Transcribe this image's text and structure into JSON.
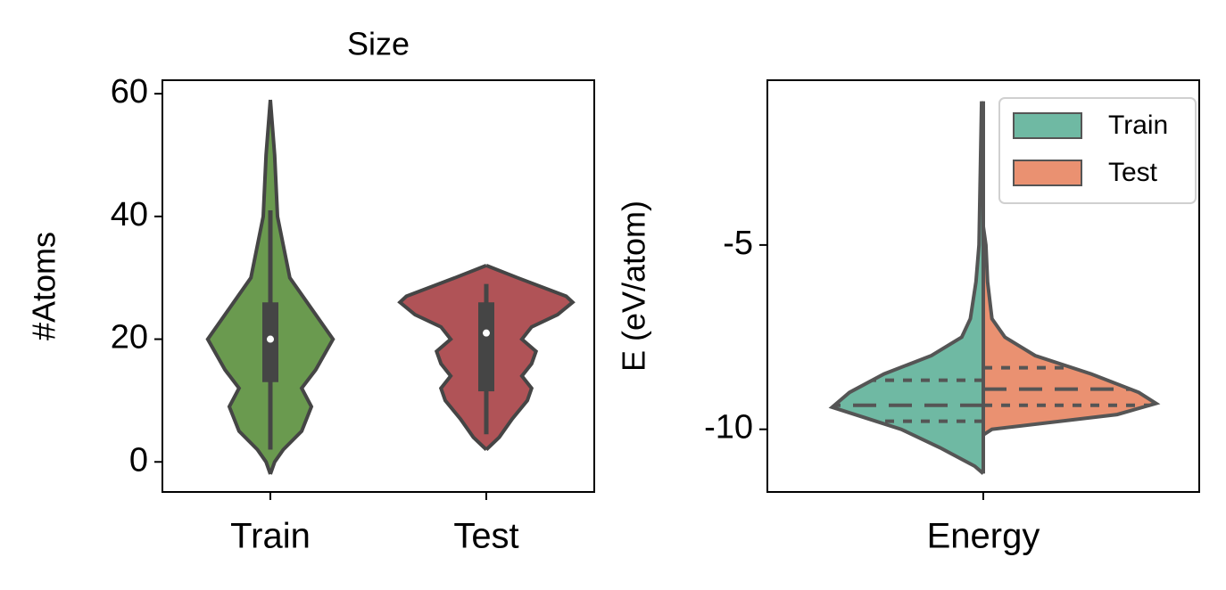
{
  "chart_data": [
    {
      "type": "violin",
      "title": "Size",
      "ylabel": "#Atoms",
      "categories": [
        "Train",
        "Test"
      ],
      "ylim": [
        -4.9,
        62.2
      ],
      "yticks": [
        0,
        20,
        40,
        60
      ],
      "violins": [
        {
          "name": "Train",
          "color": "#6a9a4f",
          "y": [
            59,
            50,
            40,
            30,
            26,
            20,
            15,
            12,
            9,
            5,
            2,
            0,
            -2
          ],
          "widths": [
            0,
            0.02,
            0.033,
            0.09,
            0.17,
            0.29,
            0.21,
            0.145,
            0.19,
            0.145,
            0.06,
            0.02,
            0
          ],
          "whiskers": [
            2,
            41
          ],
          "quartiles": [
            13,
            26
          ],
          "median": 20
        },
        {
          "name": "Test",
          "color": "#b05357",
          "y": [
            32,
            30,
            27,
            26,
            24,
            22,
            20,
            18,
            16,
            14,
            12,
            10,
            7,
            4,
            2
          ],
          "widths": [
            0,
            0.145,
            0.37,
            0.4,
            0.33,
            0.21,
            0.165,
            0.23,
            0.21,
            0.165,
            0.21,
            0.19,
            0.12,
            0.06,
            0
          ],
          "whiskers": [
            4.5,
            29
          ],
          "quartiles": [
            11.5,
            26
          ],
          "median": 21
        }
      ]
    },
    {
      "type": "split-violin",
      "ylabel": "E (eV/atom)",
      "categories": [
        "Energy"
      ],
      "ylim": [
        -11.7,
        -0.53
      ],
      "yticks": [
        -10,
        -5
      ],
      "legend": "upper right",
      "series": [
        {
          "name": "Train",
          "color": "#6fb9a3",
          "y": [
            -1.1,
            -5,
            -6,
            -7,
            -7.5,
            -8,
            -8.5,
            -9,
            -9.4,
            -9.7,
            -10,
            -10.5,
            -11,
            -11.2
          ],
          "widths": [
            0.004,
            0.01,
            0.017,
            0.03,
            0.05,
            0.12,
            0.23,
            0.31,
            0.35,
            0.27,
            0.19,
            0.1,
            0.02,
            0
          ],
          "quartiles": [
            -8.67,
            -9.35,
            -9.78
          ]
        },
        {
          "name": "Test",
          "color": "#ea9171",
          "y": [
            -4.5,
            -5,
            -6,
            -7,
            -7.5,
            -8,
            -8.5,
            -9,
            -9.3,
            -9.6,
            -10,
            -10.15
          ],
          "widths": [
            0,
            0.006,
            0.01,
            0.02,
            0.05,
            0.12,
            0.25,
            0.36,
            0.4,
            0.31,
            0.02,
            0
          ],
          "quartiles": [
            -8.33,
            -8.91,
            -9.35
          ]
        }
      ]
    }
  ]
}
